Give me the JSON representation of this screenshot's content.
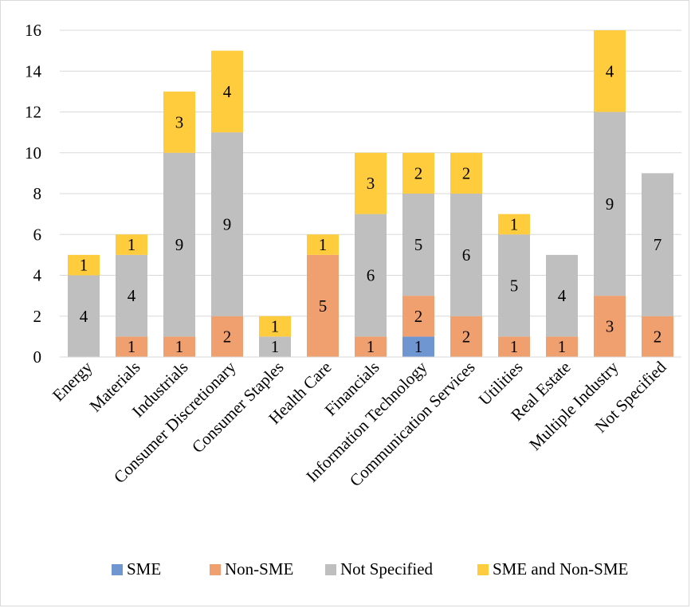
{
  "chart_data": {
    "type": "bar",
    "stacked": true,
    "categories": [
      "Energy",
      "Materials",
      "Industrials",
      "Consumer Discretionary",
      "Consumer Staples",
      "Health Care",
      "Financials",
      "Information Technology",
      "Communication Services",
      "Utilities",
      "Real Estate",
      "Multiple Industry",
      "Not Specified"
    ],
    "series": [
      {
        "name": "SME",
        "color": "#6f96d1",
        "values": [
          0,
          0,
          0,
          0,
          0,
          0,
          0,
          1,
          0,
          0,
          0,
          0,
          0
        ]
      },
      {
        "name": "Non-SME",
        "color": "#f0a06e",
        "values": [
          0,
          1,
          1,
          2,
          0,
          5,
          1,
          2,
          2,
          1,
          1,
          3,
          2
        ]
      },
      {
        "name": "Not Specified",
        "color": "#bfbfbf",
        "values": [
          4,
          4,
          9,
          9,
          1,
          0,
          6,
          5,
          6,
          5,
          4,
          9,
          7
        ]
      },
      {
        "name": "SME and Non-SME",
        "color": "#fecc3d",
        "values": [
          1,
          1,
          3,
          4,
          1,
          1,
          3,
          2,
          2,
          1,
          0,
          4,
          0
        ]
      }
    ],
    "ylim": [
      0,
      16
    ],
    "yticks": [
      0,
      2,
      4,
      6,
      8,
      10,
      12,
      14,
      16
    ],
    "grid": true,
    "legend_position": "bottom",
    "title": "",
    "xlabel": "",
    "ylabel": ""
  }
}
